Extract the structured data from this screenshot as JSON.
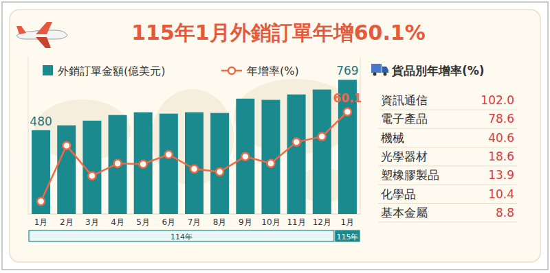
{
  "chart_data": {
    "type": "bar",
    "title": "115年1月外銷訂單年增60.1%",
    "categories": [
      "1月",
      "2月",
      "3月",
      "4月",
      "5月",
      "6月",
      "7月",
      "8月",
      "9月",
      "10月",
      "11月",
      "12月",
      "1月"
    ],
    "x_groups": [
      {
        "label": "114年",
        "size": 12
      },
      {
        "label": "115年",
        "size": 1
      }
    ],
    "series": [
      {
        "name": "外銷訂單金額(億美元)",
        "type": "bar",
        "color": "#1a8a8e",
        "values": [
          480,
          508,
          535,
          567,
          583,
          575,
          583,
          579,
          661,
          654,
          685,
          713,
          769
        ],
        "value_labels": [
          "480",
          null,
          null,
          null,
          null,
          null,
          null,
          null,
          null,
          null,
          null,
          null,
          "769"
        ]
      },
      {
        "name": "年增率(%)",
        "type": "line",
        "axis": "y2",
        "color": "#ee6a45",
        "marker": "circle",
        "values": [
          3.1,
          38.6,
          19.3,
          27.2,
          26.8,
          32.9,
          23.7,
          21.9,
          31.6,
          27.2,
          40.8,
          44.3,
          60.1
        ],
        "value_labels": [
          null,
          null,
          null,
          null,
          null,
          null,
          null,
          null,
          null,
          null,
          null,
          null,
          "60.1"
        ]
      }
    ],
    "ylim": [
      0,
      900
    ],
    "y2lim": [
      -5,
      95
    ],
    "tick_labels": "x",
    "legend": "top left",
    "data_labels": true,
    "grid": false
  },
  "goods_table": {
    "title": "貨品別年增率(%)",
    "rows": [
      {
        "label": "資訊通信",
        "value": "102.0"
      },
      {
        "label": "電子產品",
        "value": "78.6"
      },
      {
        "label": "機械",
        "value": "40.6"
      },
      {
        "label": "光學器材",
        "value": "18.6"
      },
      {
        "label": "塑橡膠製品",
        "value": "13.9"
      },
      {
        "label": "化學品",
        "value": "10.4"
      },
      {
        "label": "基本金屬",
        "value": "8.8"
      }
    ]
  }
}
